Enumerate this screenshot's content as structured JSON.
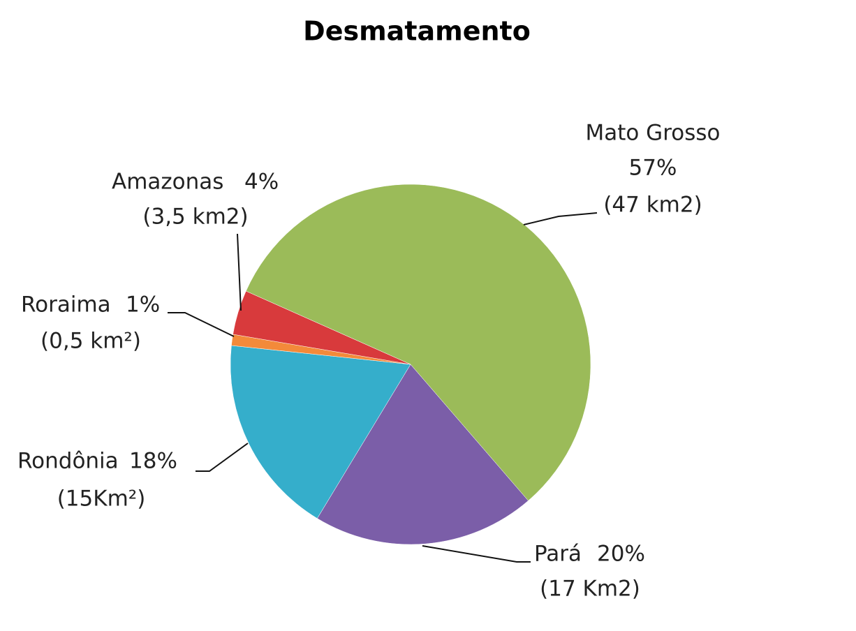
{
  "chart_data": {
    "type": "pie",
    "title": "Desmatamento",
    "categories": [
      "Mato Grosso",
      "Pará",
      "Rondônia",
      "Roraima",
      "Amazonas"
    ],
    "values": [
      57,
      20,
      18,
      1,
      4
    ],
    "value_labels": [
      "57%",
      "20%",
      "18%",
      "1%",
      "4%"
    ],
    "area_labels": [
      "(47 km2)",
      "(17 Km2)",
      "(15Km²)",
      "(0,5 km²)",
      "(3,5 km2)"
    ],
    "colors": [
      "#9bbb59",
      "#7b5ea8",
      "#35aecb",
      "#f38a3a",
      "#d83a3c"
    ]
  }
}
